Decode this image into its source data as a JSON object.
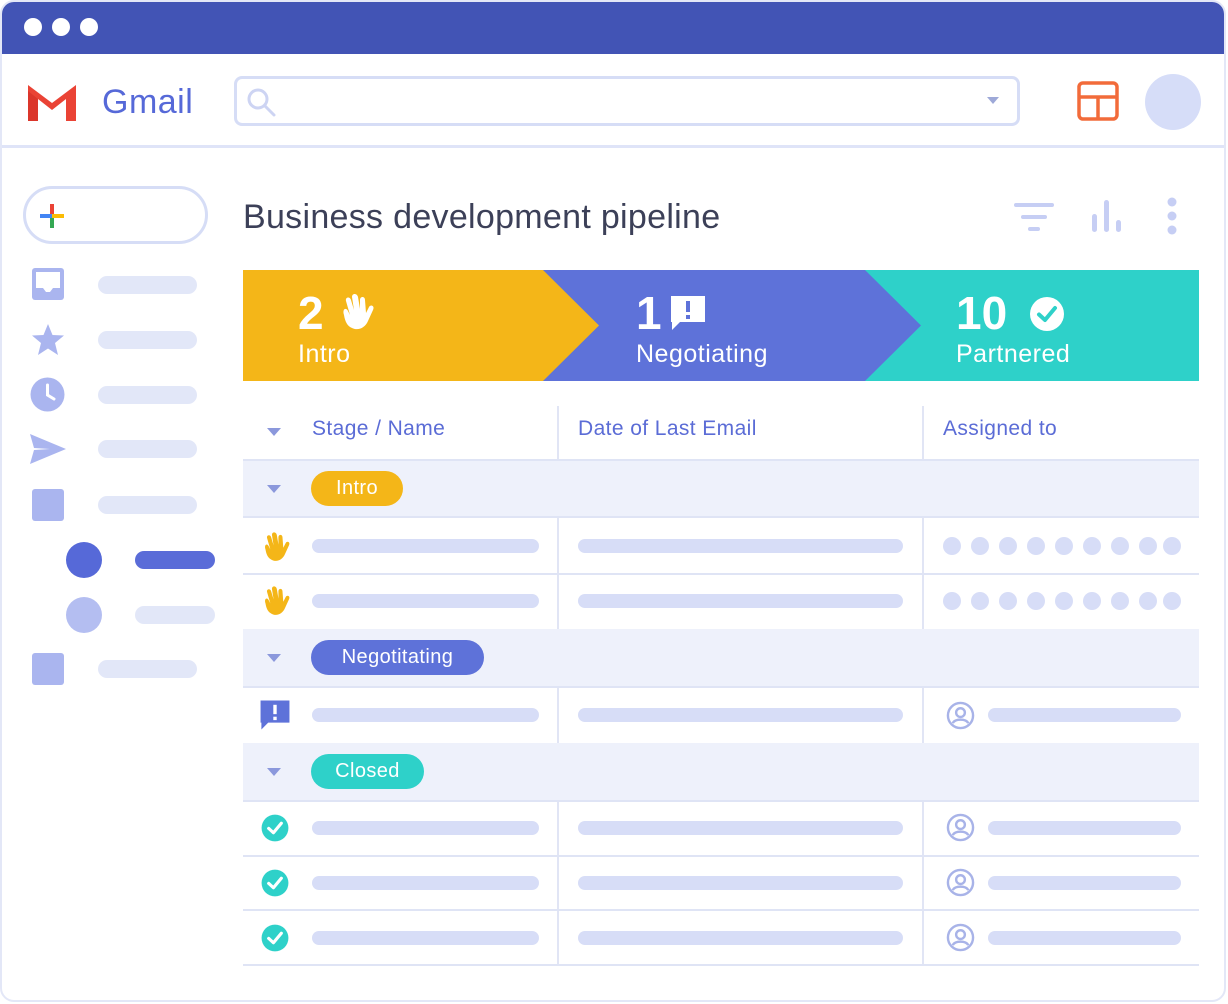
{
  "window": {
    "controls": [
      "dot",
      "dot",
      "dot"
    ]
  },
  "header": {
    "app_name": "Gmail",
    "search": {
      "value": "",
      "placeholder": ""
    }
  },
  "pipeline": {
    "title": "Business development pipeline",
    "stages": [
      {
        "count": "2",
        "label": "Intro",
        "icon": "waving-hand-icon",
        "color": "#f4b618"
      },
      {
        "count": "1",
        "label": "Negotiating",
        "icon": "exclamation-bubble-icon",
        "color": "#5e72d9"
      },
      {
        "count": "10",
        "label": "Partnered",
        "icon": "check-circle-icon",
        "color": "#2ed1c9"
      }
    ]
  },
  "table": {
    "columns": [
      "Stage / Name",
      "Date of Last Email",
      "Assigned to"
    ],
    "groups": [
      {
        "label": "Intro",
        "color": "#f4b618"
      },
      {
        "label": "Negotitating",
        "color": "#5e72d9"
      },
      {
        "label": "Closed",
        "color": "#2ed1c9"
      }
    ]
  },
  "colors": {
    "titlebar": "#4254b5",
    "accent": "#5669d8",
    "placeholder_bar": "#d7ddf7"
  }
}
